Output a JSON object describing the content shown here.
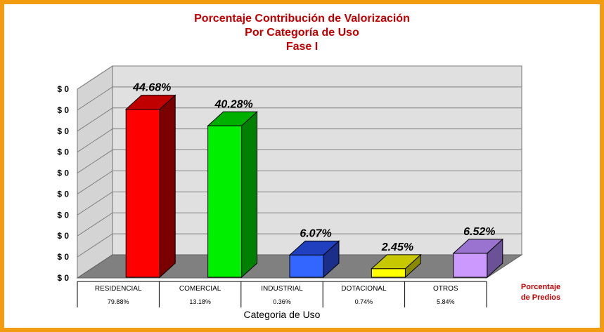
{
  "chart_data": {
    "type": "bar",
    "title_lines": [
      "Porcentaje Contribución de Valorización",
      "Por Categoría de Uso",
      "Fase I"
    ],
    "xlabel": "Categoria de Uso",
    "categories": [
      "RESIDENCIAL",
      "COMERCIAL",
      "INDUSTRIAL",
      "DOTACIONAL",
      "OTROS"
    ],
    "values": [
      44.68,
      40.28,
      6.07,
      2.45,
      6.52
    ],
    "value_labels": [
      "44.68%",
      "40.28%",
      "6.07%",
      "2.45%",
      "6.52%"
    ],
    "table_row_label": "Porcentaje de Predios",
    "table_row_label_lines": [
      "Porcentaje",
      "de Predios"
    ],
    "table_values": [
      "79.88%",
      "13.18%",
      "0.36%",
      "0.74%",
      "5.84%"
    ],
    "y_tick_labels": [
      "$ 0",
      "$ 0",
      "$ 0",
      "$ 0",
      "$ 0",
      "$ 0",
      "$ 0",
      "$ 0",
      "$ 0",
      "$ 0"
    ],
    "ylim": [
      0,
      50
    ],
    "grid": true,
    "legend": "none",
    "colors": {
      "bars": [
        "#ff0000",
        "#00ee00",
        "#3366ff",
        "#ffff00",
        "#cc99ff"
      ],
      "bar_sides": [
        "#7a0000",
        "#008000",
        "#1a2e8a",
        "#8a8a00",
        "#6b5196"
      ],
      "bar_tops": [
        "#c00000",
        "#00b000",
        "#2040c0",
        "#c8c800",
        "#9a73d0"
      ],
      "wall": "#e0e0e0",
      "floor": "#808080",
      "title": "#c00000",
      "frame": "#f39c12"
    }
  }
}
